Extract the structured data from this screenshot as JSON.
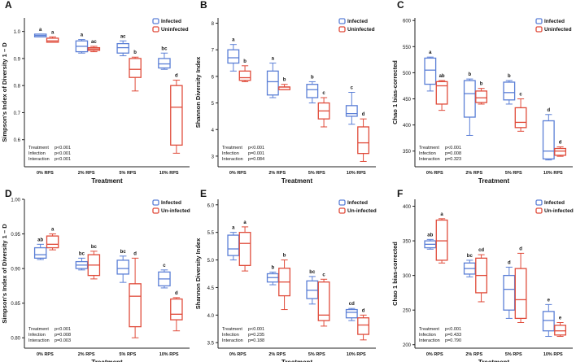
{
  "colors": {
    "infected": "#5b7fd6",
    "uninfected": "#e04b3a",
    "axis": "#222222",
    "text": "#111111"
  },
  "chart_data": [
    {
      "panel": "A",
      "type": "box",
      "ylabel": "Simpson's Index of Diversity 1 – D",
      "xlabel": "Treatment",
      "categories": [
        "0% RPS",
        "2% RPS",
        "5% RPS",
        "10% RPS"
      ],
      "ylim": [
        0.5,
        1.05
      ],
      "yticks": [
        "0.6",
        "0.7",
        "0.8",
        "0.9",
        "1.0"
      ],
      "ytick_values": [
        0.6,
        0.7,
        0.8,
        0.9,
        1.0
      ],
      "legend": [
        "Infected",
        "Uninfected"
      ],
      "series": [
        {
          "name": "Infected",
          "boxes": [
            [
              0.98,
              0.98,
              0.985,
              0.99,
              0.99
            ],
            [
              0.92,
              0.925,
              0.945,
              0.965,
              0.97
            ],
            [
              0.91,
              0.92,
              0.94,
              0.955,
              0.965
            ],
            [
              0.86,
              0.865,
              0.88,
              0.9,
              0.92
            ]
          ],
          "letters": [
            "a",
            "a",
            "ac",
            "bc"
          ]
        },
        {
          "name": "Uninfected",
          "boxes": [
            [
              0.96,
              0.96,
              0.965,
              0.975,
              0.98
            ],
            [
              0.925,
              0.93,
              0.935,
              0.94,
              0.945
            ],
            [
              0.78,
              0.83,
              0.86,
              0.9,
              0.905
            ],
            [
              0.55,
              0.58,
              0.72,
              0.8,
              0.82
            ]
          ],
          "letters": [
            "a",
            "ac",
            "b",
            "d"
          ]
        }
      ],
      "stats": [
        {
          "label": "Treatment",
          "value": "p<0.001"
        },
        {
          "label": "Infection",
          "value": "p<0.001"
        },
        {
          "label": "Interaction",
          "value": "p<0.001"
        }
      ]
    },
    {
      "panel": "B",
      "type": "box",
      "ylabel": "Shannon Diversity Index",
      "xlabel": "Treatment",
      "categories": [
        "0% RPS",
        "2% RPS",
        "5% RPS",
        "10% RPS"
      ],
      "ylim": [
        2.6,
        8.2
      ],
      "yticks": [
        "3",
        "4",
        "5",
        "6",
        "7",
        "8"
      ],
      "ytick_values": [
        3,
        4,
        5,
        6,
        7,
        8
      ],
      "legend": [
        "Infected",
        "Uninfected"
      ],
      "series": [
        {
          "name": "Infected",
          "boxes": [
            [
              6.2,
              6.5,
              6.7,
              7.0,
              7.2
            ],
            [
              5.2,
              5.3,
              5.8,
              6.2,
              6.5
            ],
            [
              5.0,
              5.2,
              5.5,
              5.7,
              5.8
            ],
            [
              4.2,
              4.5,
              4.6,
              4.9,
              5.4
            ]
          ],
          "letters": [
            "a",
            "a",
            "b",
            "c"
          ]
        },
        {
          "name": "Uninfected",
          "boxes": [
            [
              5.8,
              5.85,
              5.95,
              6.2,
              6.4
            ],
            [
              5.5,
              5.5,
              5.6,
              5.6,
              5.7
            ],
            [
              4.1,
              4.4,
              4.7,
              5.0,
              5.2
            ],
            [
              2.8,
              3.1,
              3.5,
              4.1,
              4.4
            ]
          ],
          "letters": [
            "b",
            "b",
            "c",
            "d"
          ]
        }
      ],
      "stats": [
        {
          "label": "Treatment",
          "value": "p<0.001"
        },
        {
          "label": "Infection",
          "value": "p=0.001"
        },
        {
          "label": "Interaction",
          "value": "p=0.084"
        }
      ]
    },
    {
      "panel": "C",
      "type": "box",
      "ylabel": "Chao 1 bias-corrected",
      "xlabel": "Treatment",
      "categories": [
        "0% RPS",
        "2% RPS",
        "5% RPS",
        "10% RPS"
      ],
      "ylim": [
        320,
        605
      ],
      "yticks": [
        "350",
        "400",
        "450",
        "500",
        "550",
        "600"
      ],
      "ytick_values": [
        350,
        400,
        450,
        500,
        550,
        600
      ],
      "legend": [
        "Infected",
        "Uninfected"
      ],
      "series": [
        {
          "name": "Infected",
          "boxes": [
            [
              465,
              478,
              505,
              528,
              530
            ],
            [
              380,
              415,
              460,
              485,
              488
            ],
            [
              440,
              448,
              462,
              482,
              485
            ],
            [
              333,
              335,
              350,
              408,
              420
            ]
          ],
          "letters": [
            "a",
            "b",
            "b",
            "d"
          ]
        },
        {
          "name": "Uninfected",
          "boxes": [
            [
              428,
              440,
              475,
              483,
              485
            ],
            [
              440,
              443,
              452,
              465,
              470
            ],
            [
              388,
              395,
              405,
              433,
              450
            ],
            [
              340,
              342,
              350,
              355,
              358
            ]
          ],
          "letters": [
            "ab",
            "b",
            "c",
            "d"
          ]
        }
      ],
      "stats": [
        {
          "label": "Treatment",
          "value": "p<0.001"
        },
        {
          "label": "Infection",
          "value": "p=0.008"
        },
        {
          "label": "Interaction",
          "value": "p=0.323"
        }
      ]
    },
    {
      "panel": "D",
      "type": "box",
      "ylabel": "Simpson's Index of Diversity 1 – D",
      "xlabel": "Treatment",
      "categories": [
        "0% RPS",
        "2% RPS",
        "5% RPS",
        "10% RPS"
      ],
      "ylim": [
        0.785,
        1.0
      ],
      "yticks": [
        "0.80",
        "0.85",
        "0.90",
        "0.95",
        "1.00"
      ],
      "ytick_values": [
        0.8,
        0.85,
        0.9,
        0.95,
        1.0
      ],
      "legend": [
        "Infected",
        "Un-infected"
      ],
      "series": [
        {
          "name": "Infected",
          "boxes": [
            [
              0.913,
              0.915,
              0.92,
              0.93,
              0.935
            ],
            [
              0.898,
              0.9,
              0.905,
              0.91,
              0.915
            ],
            [
              0.88,
              0.892,
              0.9,
              0.912,
              0.918
            ],
            [
              0.872,
              0.875,
              0.885,
              0.895,
              0.898
            ]
          ],
          "letters": [
            "ab",
            "bc",
            "bc",
            "c"
          ]
        },
        {
          "name": "Un-infected",
          "boxes": [
            [
              0.927,
              0.93,
              0.935,
              0.947,
              0.95
            ],
            [
              0.885,
              0.89,
              0.905,
              0.92,
              0.925
            ],
            [
              0.8,
              0.816,
              0.86,
              0.878,
              0.915
            ],
            [
              0.81,
              0.826,
              0.834,
              0.856,
              0.858
            ]
          ],
          "letters": [
            "a",
            "bc",
            "d",
            "d"
          ]
        }
      ],
      "stats": [
        {
          "label": "Treatment",
          "value": "p<0.001"
        },
        {
          "label": "Infection",
          "value": "p=0.008"
        },
        {
          "label": "Interaction",
          "value": "p=0.003"
        }
      ]
    },
    {
      "panel": "E",
      "type": "box",
      "ylabel": "Shannon Diversity Index",
      "xlabel": "Treatment",
      "categories": [
        "0% RPS",
        "2% RPS",
        "5% RPS",
        "10% RPS"
      ],
      "ylim": [
        3.4,
        6.1
      ],
      "yticks": [
        "3.5",
        "4.0",
        "4.5",
        "5.0",
        "5.5",
        "6.0"
      ],
      "ytick_values": [
        3.5,
        4.0,
        4.5,
        5.0,
        5.5,
        6.0
      ],
      "legend": [
        "Infected",
        "Un-infected"
      ],
      "series": [
        {
          "name": "Infected",
          "boxes": [
            [
              5.0,
              5.08,
              5.2,
              5.45,
              5.5
            ],
            [
              4.55,
              4.6,
              4.68,
              4.75,
              4.78
            ],
            [
              4.2,
              4.3,
              4.45,
              4.62,
              4.7
            ],
            [
              3.9,
              3.95,
              4.05,
              4.1,
              4.12
            ]
          ],
          "letters": [
            "a",
            "b",
            "bc",
            "cd"
          ]
        },
        {
          "name": "Un-infected",
          "boxes": [
            [
              4.8,
              4.9,
              5.3,
              5.5,
              5.6
            ],
            [
              4.1,
              4.35,
              4.6,
              4.85,
              5.0
            ],
            [
              3.8,
              3.9,
              4.0,
              4.6,
              4.65
            ],
            [
              3.55,
              3.65,
              3.82,
              3.95,
              4.0
            ]
          ],
          "letters": [
            "a",
            "b",
            "c",
            "d"
          ]
        }
      ],
      "stats": [
        {
          "label": "Treatment",
          "value": "p<0.001"
        },
        {
          "label": "Infection",
          "value": "p=0.235"
        },
        {
          "label": "Interaction",
          "value": "p=0.188"
        }
      ]
    },
    {
      "panel": "F",
      "type": "box",
      "ylabel": "Chao 1 bias-corrected",
      "xlabel": "Treatment",
      "categories": [
        "0% RPS",
        "2% RPS",
        "5% RPS",
        "10% RPS"
      ],
      "ylim": [
        195,
        410
      ],
      "yticks": [
        "200",
        "250",
        "300",
        "350",
        "400"
      ],
      "ytick_values": [
        200,
        250,
        300,
        350,
        400
      ],
      "legend": [
        "Infected",
        "Un-infected"
      ],
      "series": [
        {
          "name": "Infected",
          "boxes": [
            [
              338,
              340,
              345,
              350,
              352
            ],
            [
              298,
              302,
              310,
              318,
              322
            ],
            [
              238,
              250,
              280,
              300,
              312
            ],
            [
              212,
              220,
              235,
              248,
              258
            ]
          ],
          "letters": [
            "ab",
            "bc",
            "d",
            "e"
          ]
        },
        {
          "name": "Un-infected",
          "boxes": [
            [
              318,
              322,
              350,
              380,
              382
            ],
            [
              262,
              275,
              300,
              325,
              330
            ],
            [
              232,
              238,
              265,
              310,
              332
            ],
            [
              212,
              214,
              220,
              228,
              232
            ]
          ],
          "letters": [
            "a",
            "cd",
            "d",
            "e"
          ]
        }
      ],
      "stats": [
        {
          "label": "Treatment",
          "value": "p<0.001"
        },
        {
          "label": "Infection",
          "value": "p=0.433"
        },
        {
          "label": "Interaction",
          "value": "p=0.790"
        }
      ]
    }
  ]
}
